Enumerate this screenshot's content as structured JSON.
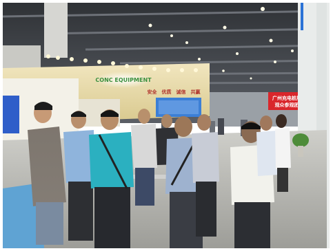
{
  "scene": {
    "description_free": true,
    "booth_logo_text": "CONC EQUIPMENT",
    "booth_slogan": "安全　优质　诚信　共赢",
    "red_sign_line1": "广州充电桩展",
    "red_sign_line2": "观众参观团",
    "colors": {
      "ceiling": "#3f4247",
      "booth_yellow": "#e8d9a4",
      "red_sign": "#d9262b",
      "screen_blue": "#3c7fd6",
      "floor": "#b9b9b4"
    }
  }
}
